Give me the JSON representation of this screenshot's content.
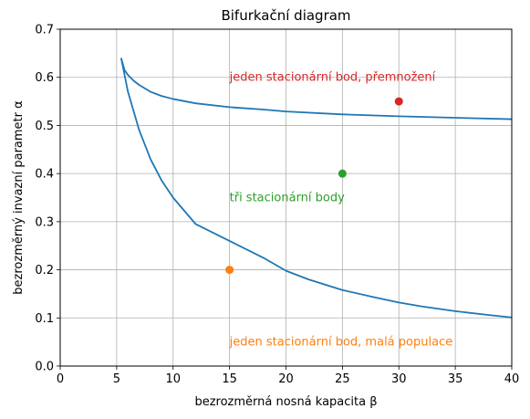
{
  "chart_data": {
    "type": "line",
    "title": "Bifurkační diagram",
    "xlabel": "bezrozměrná nosná kapacita β",
    "ylabel": "bezrozměrný invazní parametr α",
    "xlim": [
      0,
      40
    ],
    "ylim": [
      0,
      0.7
    ],
    "xticks": [
      0,
      5,
      10,
      15,
      20,
      25,
      30,
      35,
      40
    ],
    "yticks": [
      0.0,
      0.1,
      0.2,
      0.3,
      0.4,
      0.5,
      0.6,
      0.7
    ],
    "xtick_labels": [
      "0",
      "5",
      "10",
      "15",
      "20",
      "25",
      "30",
      "35",
      "40"
    ],
    "ytick_labels": [
      "0.0",
      "0.1",
      "0.2",
      "0.3",
      "0.4",
      "0.5",
      "0.6",
      "0.7"
    ],
    "grid": true,
    "series": [
      {
        "color": "#1f77b4",
        "points": [
          [
            5.4,
            0.64
          ],
          [
            5.7,
            0.615
          ],
          [
            6,
            0.605
          ],
          [
            6.5,
            0.593
          ],
          [
            7,
            0.584
          ],
          [
            8,
            0.57
          ],
          [
            9,
            0.561
          ],
          [
            10,
            0.555
          ],
          [
            12,
            0.546
          ],
          [
            15,
            0.538
          ],
          [
            18,
            0.533
          ],
          [
            20,
            0.529
          ],
          [
            25,
            0.523
          ],
          [
            30,
            0.519
          ],
          [
            35,
            0.516
          ],
          [
            40,
            0.513
          ]
        ]
      },
      {
        "color": "#1f77b4",
        "points": [
          [
            5.4,
            0.64
          ],
          [
            6,
            0.57
          ],
          [
            7,
            0.49
          ],
          [
            8,
            0.43
          ],
          [
            9,
            0.385
          ],
          [
            10,
            0.35
          ],
          [
            12,
            0.295
          ],
          [
            15,
            0.26
          ],
          [
            18,
            0.225
          ],
          [
            20,
            0.198
          ],
          [
            22,
            0.18
          ],
          [
            25,
            0.158
          ],
          [
            28,
            0.142
          ],
          [
            30,
            0.132
          ],
          [
            32,
            0.124
          ],
          [
            35,
            0.114
          ],
          [
            38,
            0.106
          ],
          [
            40,
            0.101
          ]
        ]
      }
    ],
    "markers": [
      {
        "x": 30,
        "y": 0.55,
        "color": "#d62728"
      },
      {
        "x": 25,
        "y": 0.4,
        "color": "#2ca02c"
      },
      {
        "x": 15,
        "y": 0.2,
        "color": "#ff7f0e"
      }
    ],
    "annotations": [
      {
        "text": "jeden stacionární bod, přemnožení",
        "x": 15,
        "y": 0.6,
        "color": "#d62728"
      },
      {
        "text": "tři stacionární body",
        "x": 15,
        "y": 0.35,
        "color": "#2ca02c"
      },
      {
        "text": "jeden stacionární bod, malá populace",
        "x": 15,
        "y": 0.05,
        "color": "#ff7f0e"
      }
    ]
  }
}
